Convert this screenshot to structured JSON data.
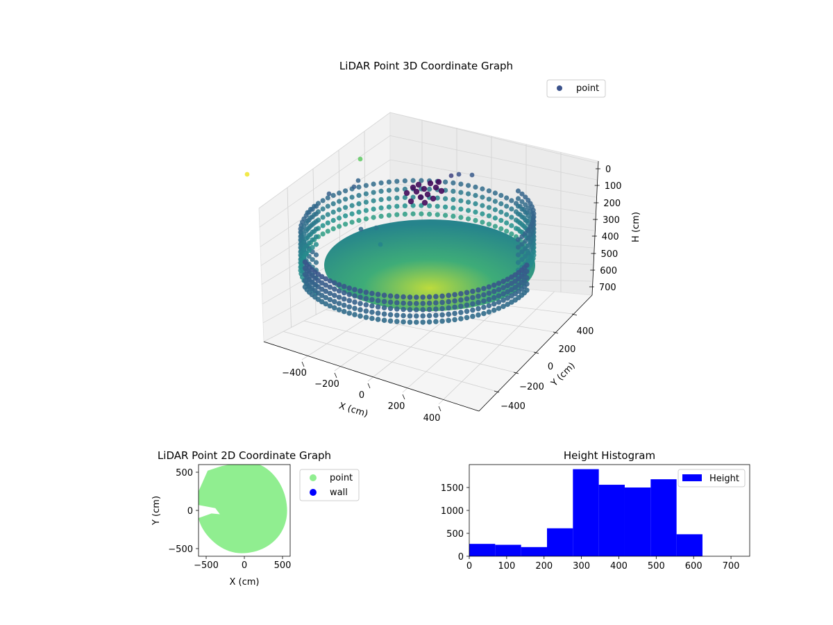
{
  "colors": {
    "point_2d": "#90ee90",
    "wall": "#0000ff",
    "histogram": "#0000ff",
    "legend_3d_marker": "#3b528b"
  },
  "chart_data": [
    {
      "type": "scatter",
      "title": "LiDAR Point 3D Coordinate Graph",
      "projection": "3d",
      "xlabel": "X (cm)",
      "ylabel": "Y (cm)",
      "zlabel": "H (cm)",
      "xticks": [
        "−400",
        "−200",
        "0",
        "200",
        "400"
      ],
      "yticks": [
        "−400",
        "−200",
        "0",
        "200",
        "400"
      ],
      "zticks": [
        "0",
        "100",
        "200",
        "300",
        "400",
        "500",
        "600",
        "700"
      ],
      "z_inverted": true,
      "colormap": "viridis",
      "legend": [
        {
          "label": "point"
        }
      ],
      "legend_loc": "upper right",
      "grid": true
    },
    {
      "type": "scatter",
      "title": "LiDAR Point 2D Coordinate Graph",
      "xlabel": "X (cm)",
      "ylabel": "Y (cm)",
      "xlim": [
        -600,
        600
      ],
      "ylim": [
        -600,
        600
      ],
      "xticks": [
        "−500",
        "0",
        "500"
      ],
      "yticks": [
        "−500",
        "0",
        "500"
      ],
      "series": [
        {
          "name": "point",
          "color": "#90ee90"
        },
        {
          "name": "wall",
          "color": "#0000ff"
        }
      ],
      "legend_loc": "outside right"
    },
    {
      "type": "bar",
      "title": "Height Histogram",
      "xlabel": "",
      "ylabel": "",
      "bin_edges": [
        0,
        69.3,
        138.6,
        207.9,
        277.2,
        346.5,
        415.8,
        485.1,
        554.4,
        623.7
      ],
      "counts": [
        270,
        250,
        200,
        610,
        1900,
        1560,
        1500,
        1680,
        480
      ],
      "xlim": [
        0,
        750
      ],
      "ylim": [
        0,
        2000
      ],
      "xticks": [
        "0",
        "100",
        "200",
        "300",
        "400",
        "500",
        "600",
        "700"
      ],
      "yticks": [
        "0",
        "500",
        "1000",
        "1500"
      ],
      "legend": [
        {
          "label": "Height"
        }
      ],
      "legend_loc": "upper right"
    }
  ]
}
